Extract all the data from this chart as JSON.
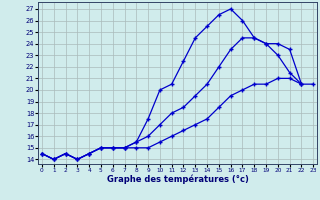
{
  "title": "Graphe des températures (°c)",
  "bg_color": "#d0ecec",
  "grid_color": "#aabbbb",
  "line_color": "#0000cc",
  "x_ticks": [
    0,
    1,
    2,
    3,
    4,
    5,
    6,
    7,
    8,
    9,
    10,
    11,
    12,
    13,
    14,
    15,
    16,
    17,
    18,
    19,
    20,
    21,
    22,
    23
  ],
  "y_ticks": [
    14,
    15,
    16,
    17,
    18,
    19,
    20,
    21,
    22,
    23,
    24,
    25,
    26,
    27
  ],
  "xlim": [
    -0.3,
    23.3
  ],
  "ylim": [
    13.6,
    27.6
  ],
  "series1_x": [
    0,
    1,
    2,
    3,
    4,
    5,
    6,
    7,
    8,
    9,
    10,
    11,
    12,
    13,
    14,
    15,
    16,
    17,
    18,
    19,
    20,
    21,
    22
  ],
  "series1_y": [
    14.5,
    14.0,
    14.5,
    14.0,
    14.5,
    15.0,
    15.0,
    15.0,
    15.5,
    17.5,
    20.0,
    20.5,
    22.5,
    24.5,
    25.5,
    26.5,
    27.0,
    26.0,
    24.5,
    24.0,
    23.0,
    21.5,
    20.5
  ],
  "series2_x": [
    0,
    1,
    2,
    3,
    4,
    5,
    6,
    7,
    8,
    9,
    10,
    11,
    12,
    13,
    14,
    15,
    16,
    17,
    18,
    19,
    20,
    21,
    22
  ],
  "series2_y": [
    14.5,
    14.0,
    14.5,
    14.0,
    14.5,
    15.0,
    15.0,
    15.0,
    15.5,
    16.0,
    17.0,
    18.0,
    18.5,
    19.5,
    20.5,
    22.0,
    23.5,
    24.5,
    24.5,
    24.0,
    24.0,
    23.5,
    20.5
  ],
  "series3_x": [
    0,
    1,
    2,
    3,
    4,
    5,
    6,
    7,
    8,
    9,
    10,
    11,
    12,
    13,
    14,
    15,
    16,
    17,
    18,
    19,
    20,
    21,
    22,
    23
  ],
  "series3_y": [
    14.5,
    14.0,
    14.5,
    14.0,
    14.5,
    15.0,
    15.0,
    15.0,
    15.0,
    15.0,
    15.5,
    16.0,
    16.5,
    17.0,
    17.5,
    18.5,
    19.5,
    20.0,
    20.5,
    20.5,
    21.0,
    21.0,
    20.5,
    20.5
  ]
}
